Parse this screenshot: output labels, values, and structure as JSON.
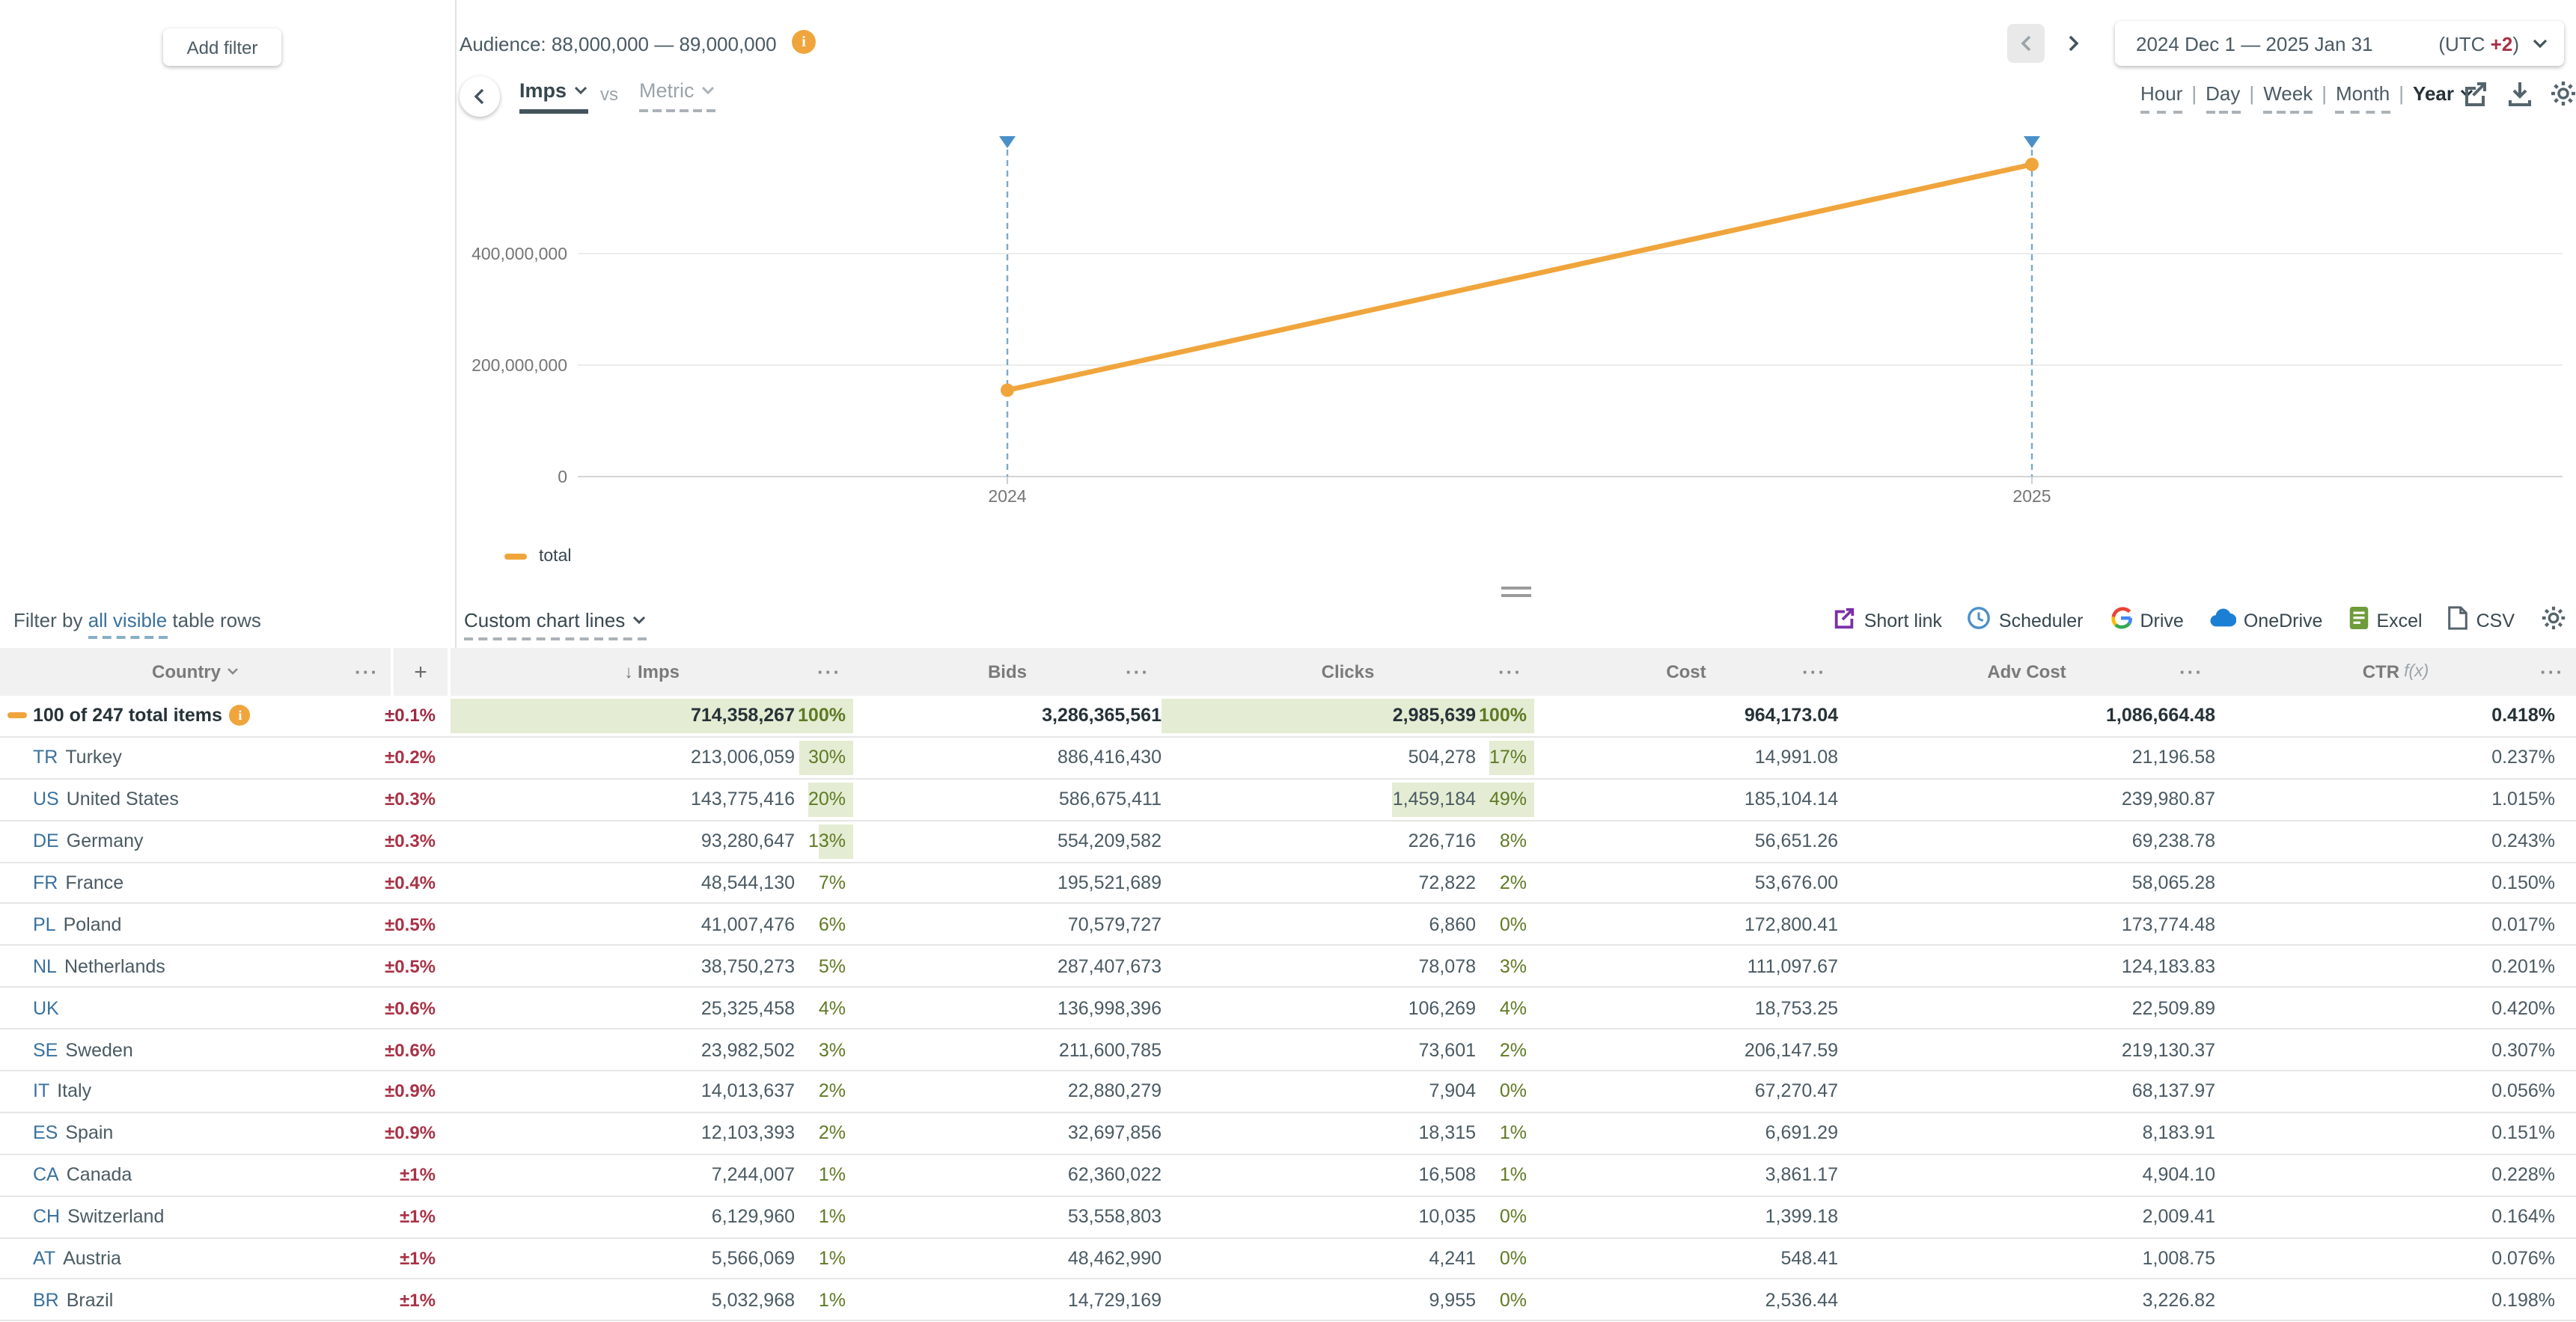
{
  "header": {
    "add_filter": "Add filter",
    "audience_label": "Audience: 88,000,000 — 89,000,000",
    "date_range": "2024 Dec 1 — 2025 Jan 31",
    "utc_prefix": "(UTC ",
    "utc_offset": "+2",
    "utc_suffix": ")"
  },
  "chart_controls": {
    "metric_primary": "Imps",
    "vs_label": "vs",
    "metric_secondary": "Metric",
    "granularity": {
      "separator": "|",
      "items": [
        {
          "label": "Hour",
          "active": false
        },
        {
          "label": "Day",
          "active": false
        },
        {
          "label": "Week",
          "active": false
        },
        {
          "label": "Month",
          "active": false
        },
        {
          "label": "Year",
          "active": true
        }
      ]
    }
  },
  "chart_data": {
    "type": "line",
    "title": "",
    "xlabel": "",
    "ylabel": "",
    "x": [
      "2024",
      "2025"
    ],
    "series": [
      {
        "name": "total",
        "color": "#f0a53c",
        "values": [
          155000000,
          560000000
        ]
      }
    ],
    "yticks": [
      0,
      200000000,
      400000000
    ],
    "ytick_labels": [
      "0",
      "200,000,000",
      "400,000,000"
    ],
    "ylim": [
      0,
      575000000
    ],
    "grid": "horizontal",
    "legend_position": "bottom-left",
    "annotations": "blue triangle markers with dashed vertical guide lines at 2024 and 2025"
  },
  "subtoolbar": {
    "filter_by_prefix": "Filter by ",
    "filter_by_link": "all visible",
    "filter_by_suffix": " table rows",
    "custom_chart_lines": "Custom chart lines",
    "export_items": [
      {
        "label": "Short link",
        "icon": "short-link-icon"
      },
      {
        "label": "Scheduler",
        "icon": "scheduler-clock-icon"
      },
      {
        "label": "Drive",
        "icon": "google-drive-icon"
      },
      {
        "label": "OneDrive",
        "icon": "onedrive-cloud-icon"
      },
      {
        "label": "Excel",
        "icon": "excel-file-icon"
      },
      {
        "label": "CSV",
        "icon": "csv-file-icon"
      }
    ]
  },
  "table": {
    "columns": {
      "country": "Country",
      "add_column": "+",
      "imps": "Imps",
      "bids": "Bids",
      "clicks": "Clicks",
      "cost": "Cost",
      "adv_cost": "Adv Cost",
      "ctr": "CTR",
      "ctr_fx": "f(x)"
    },
    "sort": {
      "column": "Imps",
      "direction": "desc",
      "arrow": "↓"
    },
    "menu_glyph": "···",
    "rows": [
      {
        "is_total": true,
        "code": "",
        "name": "100 of 247 total items",
        "info": true,
        "pm": "±0.1%",
        "imps": "714,358,267",
        "imps_pct": "100%",
        "imps_bar": 269,
        "bids": "3,286,365,561",
        "clicks": "2,985,639",
        "clicks_pct": "100%",
        "clicks_bar": 249,
        "cost": "964,173.04",
        "adv_cost": "1,086,664.48",
        "ctr": "0.418%"
      },
      {
        "code": "TR",
        "name": "Turkey",
        "pm": "±0.2%",
        "imps": "213,006,059",
        "imps_pct": "30%",
        "imps_bar": 36,
        "bids": "886,416,430",
        "clicks": "504,278",
        "clicks_pct": "17%",
        "clicks_bar": 30,
        "cost": "14,991.08",
        "adv_cost": "21,196.58",
        "ctr": "0.237%"
      },
      {
        "code": "US",
        "name": "United States",
        "pm": "±0.3%",
        "imps": "143,775,416",
        "imps_pct": "20%",
        "imps_bar": 30,
        "bids": "586,675,411",
        "clicks": "1,459,184",
        "clicks_pct": "49%",
        "clicks_bar": 95,
        "cost": "185,104.14",
        "adv_cost": "239,980.87",
        "ctr": "1.015%"
      },
      {
        "code": "DE",
        "name": "Germany",
        "pm": "±0.3%",
        "imps": "93,280,647",
        "imps_pct": "13%",
        "imps_bar": 23,
        "bids": "554,209,582",
        "clicks": "226,716",
        "clicks_pct": "8%",
        "clicks_bar": 0,
        "cost": "56,651.26",
        "adv_cost": "69,238.78",
        "ctr": "0.243%"
      },
      {
        "code": "FR",
        "name": "France",
        "pm": "±0.4%",
        "imps": "48,544,130",
        "imps_pct": "7%",
        "imps_bar": 0,
        "bids": "195,521,689",
        "clicks": "72,822",
        "clicks_pct": "2%",
        "clicks_bar": 0,
        "cost": "53,676.00",
        "adv_cost": "58,065.28",
        "ctr": "0.150%"
      },
      {
        "code": "PL",
        "name": "Poland",
        "pm": "±0.5%",
        "imps": "41,007,476",
        "imps_pct": "6%",
        "imps_bar": 0,
        "bids": "70,579,727",
        "clicks": "6,860",
        "clicks_pct": "0%",
        "clicks_bar": 0,
        "cost": "172,800.41",
        "adv_cost": "173,774.48",
        "ctr": "0.017%"
      },
      {
        "code": "NL",
        "name": "Netherlands",
        "pm": "±0.5%",
        "imps": "38,750,273",
        "imps_pct": "5%",
        "imps_bar": 0,
        "bids": "287,407,673",
        "clicks": "78,078",
        "clicks_pct": "3%",
        "clicks_bar": 0,
        "cost": "111,097.67",
        "adv_cost": "124,183.83",
        "ctr": "0.201%"
      },
      {
        "code": "UK",
        "name": "",
        "pm": "±0.6%",
        "imps": "25,325,458",
        "imps_pct": "4%",
        "imps_bar": 0,
        "bids": "136,998,396",
        "clicks": "106,269",
        "clicks_pct": "4%",
        "clicks_bar": 0,
        "cost": "18,753.25",
        "adv_cost": "22,509.89",
        "ctr": "0.420%"
      },
      {
        "code": "SE",
        "name": "Sweden",
        "pm": "±0.6%",
        "imps": "23,982,502",
        "imps_pct": "3%",
        "imps_bar": 0,
        "bids": "211,600,785",
        "clicks": "73,601",
        "clicks_pct": "2%",
        "clicks_bar": 0,
        "cost": "206,147.59",
        "adv_cost": "219,130.37",
        "ctr": "0.307%"
      },
      {
        "code": "IT",
        "name": "Italy",
        "pm": "±0.9%",
        "imps": "14,013,637",
        "imps_pct": "2%",
        "imps_bar": 0,
        "bids": "22,880,279",
        "clicks": "7,904",
        "clicks_pct": "0%",
        "clicks_bar": 0,
        "cost": "67,270.47",
        "adv_cost": "68,137.97",
        "ctr": "0.056%"
      },
      {
        "code": "ES",
        "name": "Spain",
        "pm": "±0.9%",
        "imps": "12,103,393",
        "imps_pct": "2%",
        "imps_bar": 0,
        "bids": "32,697,856",
        "clicks": "18,315",
        "clicks_pct": "1%",
        "clicks_bar": 0,
        "cost": "6,691.29",
        "adv_cost": "8,183.91",
        "ctr": "0.151%"
      },
      {
        "code": "CA",
        "name": "Canada",
        "pm": "±1%",
        "imps": "7,244,007",
        "imps_pct": "1%",
        "imps_bar": 0,
        "bids": "62,360,022",
        "clicks": "16,508",
        "clicks_pct": "1%",
        "clicks_bar": 0,
        "cost": "3,861.17",
        "adv_cost": "4,904.10",
        "ctr": "0.228%"
      },
      {
        "code": "CH",
        "name": "Switzerland",
        "pm": "±1%",
        "imps": "6,129,960",
        "imps_pct": "1%",
        "imps_bar": 0,
        "bids": "53,558,803",
        "clicks": "10,035",
        "clicks_pct": "0%",
        "clicks_bar": 0,
        "cost": "1,399.18",
        "adv_cost": "2,009.41",
        "ctr": "0.164%"
      },
      {
        "code": "AT",
        "name": "Austria",
        "pm": "±1%",
        "imps": "5,566,069",
        "imps_pct": "1%",
        "imps_bar": 0,
        "bids": "48,462,990",
        "clicks": "4,241",
        "clicks_pct": "0%",
        "clicks_bar": 0,
        "cost": "548.41",
        "adv_cost": "1,008.75",
        "ctr": "0.076%"
      },
      {
        "code": "BR",
        "name": "Brazil",
        "pm": "±1%",
        "imps": "5,032,968",
        "imps_pct": "1%",
        "imps_bar": 0,
        "bids": "14,729,169",
        "clicks": "9,955",
        "clicks_pct": "0%",
        "clicks_bar": 0,
        "cost": "2,536.44",
        "adv_cost": "3,226.82",
        "ctr": "0.198%"
      }
    ]
  },
  "colors": {
    "accent_orange": "#f0a53c",
    "marker_blue": "#4a90c8",
    "guide_dash_blue": "#7aa9cc",
    "green_text": "#5f7a24",
    "green_badge_bg": "#e4ecd3",
    "error_red": "#a93246",
    "country_code_blue": "#39719e",
    "header_grey_bg": "#f1f1f1",
    "grid_line": "#ececec"
  }
}
